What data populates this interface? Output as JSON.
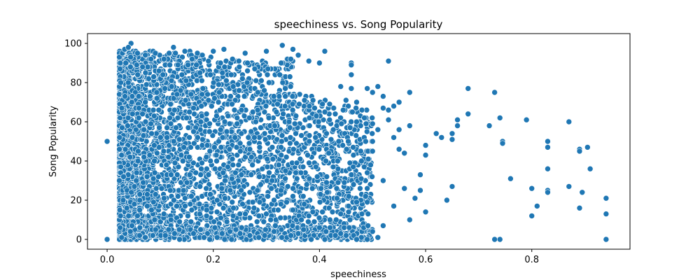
{
  "chart_data": {
    "type": "scatter",
    "title": "speechiness vs. Song Popularity",
    "xlabel": "speechiness",
    "ylabel": "Song Popularity",
    "xlim": [
      -0.037,
      0.985
    ],
    "ylim": [
      -5,
      105
    ],
    "x_ticks": [
      0.0,
      0.2,
      0.4,
      0.6,
      0.8
    ],
    "x_tick_labels": [
      "0.0",
      "0.2",
      "0.4",
      "0.6",
      "0.8"
    ],
    "y_ticks": [
      0,
      20,
      40,
      60,
      80,
      100
    ],
    "y_tick_labels": [
      "0",
      "20",
      "40",
      "60",
      "80",
      "100"
    ],
    "grid": false,
    "legend": "none",
    "marker_color": "#1f77b4",
    "marker_edge_color": "#ffffff",
    "points_summary": "Dense cloud of thousands of points for speechiness between ~0.023 and ~0.50, popularity 0–100; sparse outliers listed below.",
    "dense_region": {
      "x_range": [
        0.023,
        0.5
      ],
      "y_range": [
        0,
        100
      ]
    },
    "points": [
      {
        "x": 0.0,
        "y": 50
      },
      {
        "x": 0.0,
        "y": 0
      },
      {
        "x": 0.045,
        "y": 100
      },
      {
        "x": 0.033,
        "y": 97
      },
      {
        "x": 0.04,
        "y": 98
      },
      {
        "x": 0.125,
        "y": 98
      },
      {
        "x": 0.22,
        "y": 97
      },
      {
        "x": 0.33,
        "y": 99
      },
      {
        "x": 0.41,
        "y": 96
      },
      {
        "x": 0.53,
        "y": 91
      },
      {
        "x": 0.46,
        "y": 90
      },
      {
        "x": 0.46,
        "y": 89
      },
      {
        "x": 0.38,
        "y": 91
      },
      {
        "x": 0.4,
        "y": 90
      },
      {
        "x": 0.46,
        "y": 84
      },
      {
        "x": 0.57,
        "y": 75
      },
      {
        "x": 0.51,
        "y": 78
      },
      {
        "x": 0.5,
        "y": 75
      },
      {
        "x": 0.49,
        "y": 77
      },
      {
        "x": 0.52,
        "y": 73
      },
      {
        "x": 0.55,
        "y": 70
      },
      {
        "x": 0.54,
        "y": 68
      },
      {
        "x": 0.53,
        "y": 66
      },
      {
        "x": 0.52,
        "y": 67
      },
      {
        "x": 0.53,
        "y": 61
      },
      {
        "x": 0.55,
        "y": 56
      },
      {
        "x": 0.57,
        "y": 58
      },
      {
        "x": 0.6,
        "y": 48
      },
      {
        "x": 0.6,
        "y": 43
      },
      {
        "x": 0.55,
        "y": 46
      },
      {
        "x": 0.56,
        "y": 44
      },
      {
        "x": 0.54,
        "y": 52
      },
      {
        "x": 0.5,
        "y": 50
      },
      {
        "x": 0.51,
        "y": 56
      },
      {
        "x": 0.5,
        "y": 45
      },
      {
        "x": 0.49,
        "y": 34
      },
      {
        "x": 0.52,
        "y": 30
      },
      {
        "x": 0.49,
        "y": 26
      },
      {
        "x": 0.49,
        "y": 19
      },
      {
        "x": 0.54,
        "y": 17
      },
      {
        "x": 0.52,
        "y": 7
      },
      {
        "x": 0.5,
        "y": 4
      },
      {
        "x": 0.51,
        "y": 1
      },
      {
        "x": 0.49,
        "y": 0
      },
      {
        "x": 0.47,
        "y": 0
      },
      {
        "x": 0.58,
        "y": 21
      },
      {
        "x": 0.56,
        "y": 26
      },
      {
        "x": 0.59,
        "y": 25
      },
      {
        "x": 0.59,
        "y": 33
      },
      {
        "x": 0.6,
        "y": 14
      },
      {
        "x": 0.57,
        "y": 10
      },
      {
        "x": 0.62,
        "y": 54
      },
      {
        "x": 0.63,
        "y": 52
      },
      {
        "x": 0.65,
        "y": 54
      },
      {
        "x": 0.65,
        "y": 51
      },
      {
        "x": 0.66,
        "y": 58
      },
      {
        "x": 0.66,
        "y": 61
      },
      {
        "x": 0.68,
        "y": 64
      },
      {
        "x": 0.68,
        "y": 77
      },
      {
        "x": 0.65,
        "y": 27
      },
      {
        "x": 0.64,
        "y": 20
      },
      {
        "x": 0.72,
        "y": 58
      },
      {
        "x": 0.73,
        "y": 75
      },
      {
        "x": 0.74,
        "y": 62
      },
      {
        "x": 0.745,
        "y": 50
      },
      {
        "x": 0.745,
        "y": 49
      },
      {
        "x": 0.76,
        "y": 31
      },
      {
        "x": 0.73,
        "y": 0
      },
      {
        "x": 0.74,
        "y": 0
      },
      {
        "x": 0.79,
        "y": 61
      },
      {
        "x": 0.8,
        "y": 26
      },
      {
        "x": 0.8,
        "y": 12
      },
      {
        "x": 0.81,
        "y": 17
      },
      {
        "x": 0.83,
        "y": 47
      },
      {
        "x": 0.83,
        "y": 50
      },
      {
        "x": 0.83,
        "y": 36
      },
      {
        "x": 0.83,
        "y": 25
      },
      {
        "x": 0.83,
        "y": 24
      },
      {
        "x": 0.87,
        "y": 60
      },
      {
        "x": 0.87,
        "y": 27
      },
      {
        "x": 0.89,
        "y": 46
      },
      {
        "x": 0.89,
        "y": 45
      },
      {
        "x": 0.89,
        "y": 16
      },
      {
        "x": 0.895,
        "y": 24
      },
      {
        "x": 0.905,
        "y": 47
      },
      {
        "x": 0.91,
        "y": 36
      },
      {
        "x": 0.94,
        "y": 21
      },
      {
        "x": 0.94,
        "y": 13
      },
      {
        "x": 0.94,
        "y": 0
      },
      {
        "x": 0.35,
        "y": 97
      },
      {
        "x": 0.36,
        "y": 94
      },
      {
        "x": 0.26,
        "y": 95
      },
      {
        "x": 0.3,
        "y": 96
      },
      {
        "x": 0.2,
        "y": 96
      },
      {
        "x": 0.17,
        "y": 95
      },
      {
        "x": 0.44,
        "y": 78
      },
      {
        "x": 0.46,
        "y": 77
      },
      {
        "x": 0.47,
        "y": 70
      },
      {
        "x": 0.48,
        "y": 66
      },
      {
        "x": 0.45,
        "y": 71
      },
      {
        "x": 0.42,
        "y": 6
      },
      {
        "x": 0.43,
        "y": 2
      },
      {
        "x": 0.44,
        "y": 3
      },
      {
        "x": 0.47,
        "y": 19
      },
      {
        "x": 0.48,
        "y": 13
      },
      {
        "x": 0.44,
        "y": 13
      },
      {
        "x": 0.4,
        "y": 6
      },
      {
        "x": 0.41,
        "y": 0
      },
      {
        "x": 0.37,
        "y": 5
      },
      {
        "x": 0.36,
        "y": 3
      }
    ]
  }
}
